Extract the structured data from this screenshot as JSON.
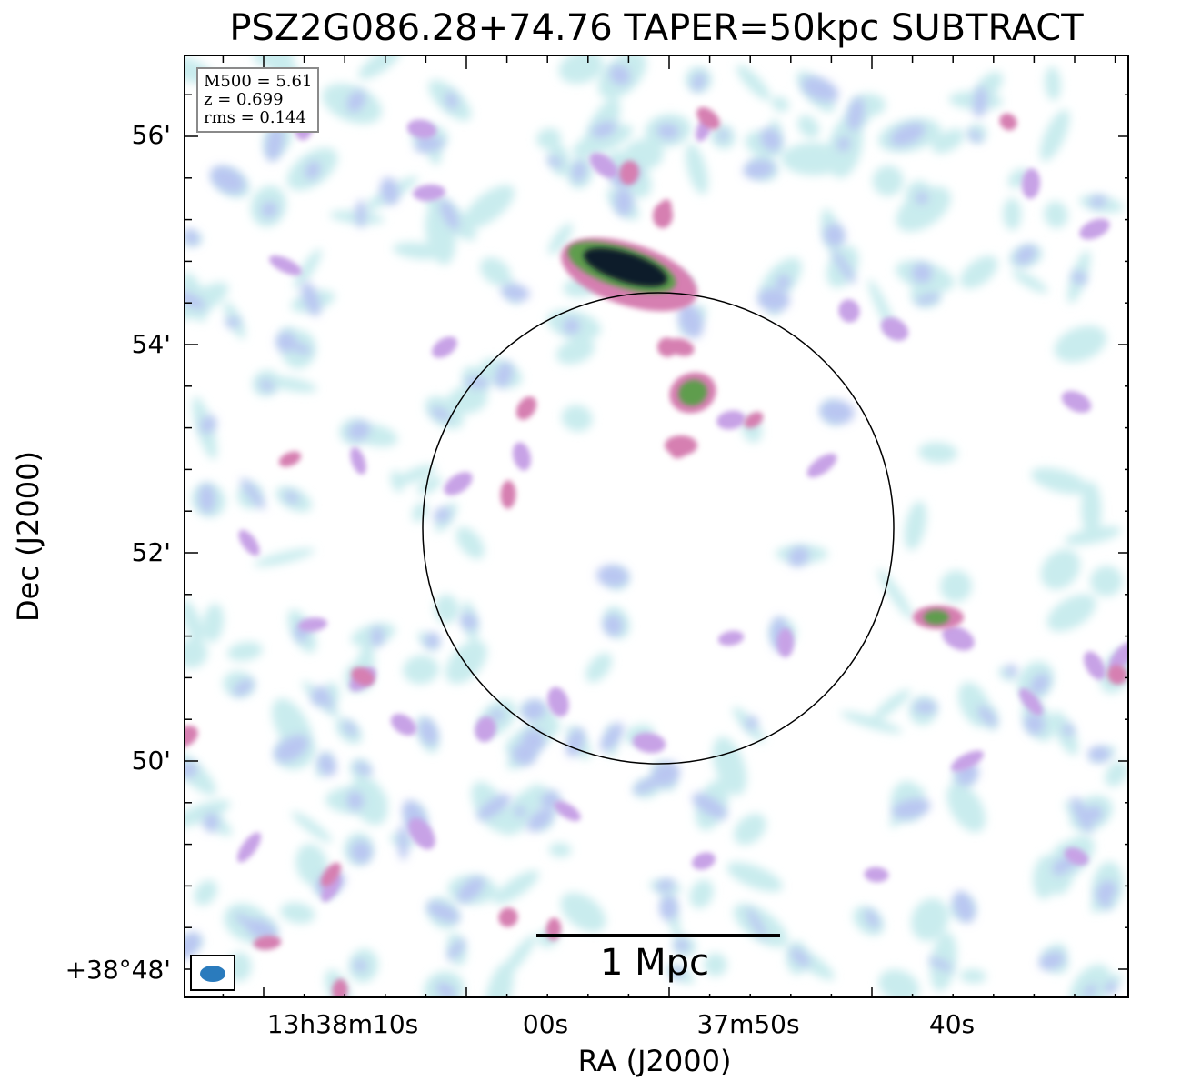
{
  "title": "PSZ2G086.28+74.76 TAPER=50kpc SUBTRACT",
  "info": {
    "m500": "M500 = 5.61",
    "z": "z = 0.699",
    "rms": "rms = 0.144"
  },
  "axes": {
    "xlabel": "RA (J2000)",
    "ylabel": "Dec (J2000)",
    "y_ticks": [
      "56'",
      "54'",
      "52'",
      "50'",
      "+38°48'"
    ],
    "x_ticks": [
      "13h38m10s",
      "00s",
      "37m50s",
      "40s"
    ]
  },
  "scale_bar": {
    "label": "1 Mpc"
  },
  "colors": {
    "faint": "#c9ecee",
    "low": "#b9c6f1",
    "mid": "#c7a2e6",
    "pink": "#d67fb1",
    "green": "#5e9d4e",
    "dark": "#0d1a2a",
    "beam": "#2a7bbd"
  },
  "icons": {
    "beam": "beam-ellipse-icon"
  }
}
